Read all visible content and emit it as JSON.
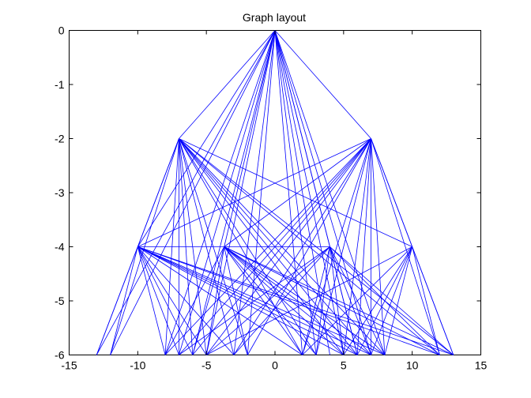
{
  "chart_data": {
    "type": "line",
    "title": "Graph layout",
    "xlabel": "",
    "ylabel": "",
    "xlim": [
      -15,
      15
    ],
    "ylim": [
      -6,
      0
    ],
    "xticks": [
      -15,
      -10,
      -5,
      0,
      5,
      10,
      15
    ],
    "yticks": [
      0,
      -1,
      -2,
      -3,
      -4,
      -5,
      -6
    ],
    "xtick_labels": [
      "-15",
      "-10",
      "-5",
      "0",
      "5",
      "10",
      "15"
    ],
    "ytick_labels": [
      "0",
      "-1",
      "-2",
      "-3",
      "-4",
      "-5",
      "-6"
    ],
    "grid": false,
    "edge_color": "#0000ff",
    "edges": [
      [
        [
          0,
          0
        ],
        [
          -7,
          -2
        ]
      ],
      [
        [
          0,
          0
        ],
        [
          7,
          -2
        ]
      ],
      [
        [
          0,
          0
        ],
        [
          -13,
          -6
        ]
      ],
      [
        [
          0,
          0
        ],
        [
          -12,
          -6
        ]
      ],
      [
        [
          0,
          0
        ],
        [
          -8,
          -6
        ]
      ],
      [
        [
          0,
          0
        ],
        [
          -7,
          -6
        ]
      ],
      [
        [
          0,
          0
        ],
        [
          -6,
          -6
        ]
      ],
      [
        [
          0,
          0
        ],
        [
          -5,
          -6
        ]
      ],
      [
        [
          0,
          0
        ],
        [
          -3,
          -6
        ]
      ],
      [
        [
          0,
          0
        ],
        [
          -2,
          -6
        ]
      ],
      [
        [
          0,
          0
        ],
        [
          2,
          -6
        ]
      ],
      [
        [
          0,
          0
        ],
        [
          3,
          -6
        ]
      ],
      [
        [
          0,
          0
        ],
        [
          4,
          -6
        ]
      ],
      [
        [
          0,
          0
        ],
        [
          5,
          -6
        ]
      ],
      [
        [
          0,
          0
        ],
        [
          6,
          -6
        ]
      ],
      [
        [
          0,
          0
        ],
        [
          7,
          -6
        ]
      ],
      [
        [
          0,
          0
        ],
        [
          8,
          -6
        ]
      ],
      [
        [
          0,
          0
        ],
        [
          -10,
          -4
        ]
      ],
      [
        [
          0,
          0
        ],
        [
          -3.7,
          -4
        ]
      ],
      [
        [
          0,
          0
        ],
        [
          4,
          -4
        ]
      ],
      [
        [
          -7,
          -2
        ],
        [
          -10,
          -4
        ]
      ],
      [
        [
          -7,
          -2
        ],
        [
          -13,
          -6
        ]
      ],
      [
        [
          -7,
          -2
        ],
        [
          -12,
          -6
        ]
      ],
      [
        [
          -7,
          -2
        ],
        [
          -8,
          -6
        ]
      ],
      [
        [
          -7,
          -2
        ],
        [
          -7,
          -6
        ]
      ],
      [
        [
          -7,
          -2
        ],
        [
          -6,
          -6
        ]
      ],
      [
        [
          -7,
          -2
        ],
        [
          -5,
          -6
        ]
      ],
      [
        [
          -7,
          -2
        ],
        [
          -3,
          -6
        ]
      ],
      [
        [
          -7,
          -2
        ],
        [
          -2,
          -6
        ]
      ],
      [
        [
          -7,
          -2
        ],
        [
          2,
          -6
        ]
      ],
      [
        [
          -7,
          -2
        ],
        [
          3,
          -6
        ]
      ],
      [
        [
          -7,
          -2
        ],
        [
          5,
          -6
        ]
      ],
      [
        [
          -7,
          -2
        ],
        [
          6,
          -6
        ]
      ],
      [
        [
          -7,
          -2
        ],
        [
          7,
          -6
        ]
      ],
      [
        [
          -7,
          -2
        ],
        [
          8,
          -6
        ]
      ],
      [
        [
          -7,
          -2
        ],
        [
          12,
          -6
        ]
      ],
      [
        [
          -7,
          -2
        ],
        [
          13,
          -6
        ]
      ],
      [
        [
          -7,
          -2
        ],
        [
          10,
          -4
        ]
      ],
      [
        [
          7,
          -2
        ],
        [
          10,
          -4
        ]
      ],
      [
        [
          7,
          -2
        ],
        [
          13,
          -6
        ]
      ],
      [
        [
          7,
          -2
        ],
        [
          12,
          -6
        ]
      ],
      [
        [
          7,
          -2
        ],
        [
          8,
          -6
        ]
      ],
      [
        [
          7,
          -2
        ],
        [
          7,
          -6
        ]
      ],
      [
        [
          7,
          -2
        ],
        [
          6,
          -6
        ]
      ],
      [
        [
          7,
          -2
        ],
        [
          5,
          -6
        ]
      ],
      [
        [
          7,
          -2
        ],
        [
          3,
          -6
        ]
      ],
      [
        [
          7,
          -2
        ],
        [
          2,
          -6
        ]
      ],
      [
        [
          7,
          -2
        ],
        [
          -2,
          -6
        ]
      ],
      [
        [
          7,
          -2
        ],
        [
          -3,
          -6
        ]
      ],
      [
        [
          7,
          -2
        ],
        [
          -5,
          -6
        ]
      ],
      [
        [
          7,
          -2
        ],
        [
          -6,
          -6
        ]
      ],
      [
        [
          7,
          -2
        ],
        [
          -7,
          -6
        ]
      ],
      [
        [
          7,
          -2
        ],
        [
          -8,
          -6
        ]
      ],
      [
        [
          7,
          -2
        ],
        [
          -10,
          -4
        ]
      ],
      [
        [
          7,
          -2
        ],
        [
          -3.7,
          -4
        ]
      ],
      [
        [
          -10,
          -4
        ],
        [
          -13,
          -6
        ]
      ],
      [
        [
          -10,
          -4
        ],
        [
          -12,
          -6
        ]
      ],
      [
        [
          -10,
          -4
        ],
        [
          -8,
          -6
        ]
      ],
      [
        [
          -10,
          -4
        ],
        [
          -7,
          -6
        ]
      ],
      [
        [
          -10,
          -4
        ],
        [
          -6,
          -6
        ]
      ],
      [
        [
          -10,
          -4
        ],
        [
          -5,
          -6
        ]
      ],
      [
        [
          -10,
          -4
        ],
        [
          -3,
          -6
        ]
      ],
      [
        [
          -10,
          -4
        ],
        [
          2,
          -6
        ]
      ],
      [
        [
          -10,
          -4
        ],
        [
          5,
          -6
        ]
      ],
      [
        [
          -10,
          -4
        ],
        [
          6,
          -6
        ]
      ],
      [
        [
          -10,
          -4
        ],
        [
          7,
          -6
        ]
      ],
      [
        [
          -10,
          -4
        ],
        [
          8,
          -6
        ]
      ],
      [
        [
          -10,
          -4
        ],
        [
          12,
          -6
        ]
      ],
      [
        [
          -10,
          -4
        ],
        [
          13,
          -6
        ]
      ],
      [
        [
          -10,
          -4
        ],
        [
          4,
          -4
        ]
      ],
      [
        [
          -3.7,
          -4
        ],
        [
          -8,
          -6
        ]
      ],
      [
        [
          -3.7,
          -4
        ],
        [
          -6,
          -6
        ]
      ],
      [
        [
          -3.7,
          -4
        ],
        [
          -5,
          -6
        ]
      ],
      [
        [
          -3.7,
          -4
        ],
        [
          -2,
          -6
        ]
      ],
      [
        [
          -3.7,
          -4
        ],
        [
          2,
          -6
        ]
      ],
      [
        [
          -3.7,
          -4
        ],
        [
          3,
          -6
        ]
      ],
      [
        [
          -3.7,
          -4
        ],
        [
          5,
          -6
        ]
      ],
      [
        [
          -3.7,
          -4
        ],
        [
          6,
          -6
        ]
      ],
      [
        [
          -3.7,
          -4
        ],
        [
          7,
          -6
        ]
      ],
      [
        [
          -3.7,
          -4
        ],
        [
          8,
          -6
        ]
      ],
      [
        [
          -3.7,
          -4
        ],
        [
          12,
          -6
        ]
      ],
      [
        [
          -3.7,
          -4
        ],
        [
          13,
          -6
        ]
      ],
      [
        [
          4,
          -4
        ],
        [
          -7,
          -6
        ]
      ],
      [
        [
          4,
          -4
        ],
        [
          -5,
          -6
        ]
      ],
      [
        [
          4,
          -4
        ],
        [
          -3,
          -6
        ]
      ],
      [
        [
          4,
          -4
        ],
        [
          2,
          -6
        ]
      ],
      [
        [
          4,
          -4
        ],
        [
          3,
          -6
        ]
      ],
      [
        [
          4,
          -4
        ],
        [
          5,
          -6
        ]
      ],
      [
        [
          4,
          -4
        ],
        [
          6,
          -6
        ]
      ],
      [
        [
          4,
          -4
        ],
        [
          7,
          -6
        ]
      ],
      [
        [
          4,
          -4
        ],
        [
          8,
          -6
        ]
      ],
      [
        [
          4,
          -4
        ],
        [
          12,
          -6
        ]
      ],
      [
        [
          4,
          -4
        ],
        [
          13,
          -6
        ]
      ],
      [
        [
          10,
          -4
        ],
        [
          -5,
          -6
        ]
      ],
      [
        [
          10,
          -4
        ],
        [
          2,
          -6
        ]
      ],
      [
        [
          10,
          -4
        ],
        [
          5,
          -6
        ]
      ],
      [
        [
          10,
          -4
        ],
        [
          6,
          -6
        ]
      ],
      [
        [
          10,
          -4
        ],
        [
          7,
          -6
        ]
      ],
      [
        [
          10,
          -4
        ],
        [
          8,
          -6
        ]
      ],
      [
        [
          10,
          -4
        ],
        [
          12,
          -6
        ]
      ],
      [
        [
          10,
          -4
        ],
        [
          13,
          -6
        ]
      ]
    ]
  }
}
